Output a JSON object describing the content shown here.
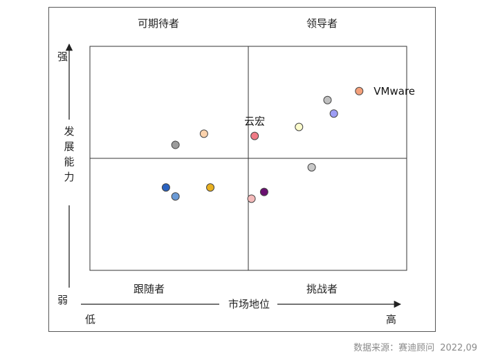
{
  "chart_data": {
    "type": "scatter",
    "title": "",
    "xlabel": "市场地位",
    "ylabel": "发展能力",
    "x_low_label": "低",
    "x_high_label": "高",
    "y_high_label": "强",
    "y_low_label": "弱",
    "xlim": [
      0,
      100
    ],
    "ylim": [
      0,
      100
    ],
    "quadrants": {
      "top_left": "可期待者",
      "top_right": "领导者",
      "bottom_left": "跟随者",
      "bottom_right": "挑战者"
    },
    "points": [
      {
        "label": "VMware",
        "x": 85,
        "y": 80,
        "color": "#f4a07a"
      },
      {
        "label": "",
        "x": 75,
        "y": 76,
        "color": "#c0c0c0"
      },
      {
        "label": "",
        "x": 77,
        "y": 70,
        "color": "#9d9df5"
      },
      {
        "label": "",
        "x": 66,
        "y": 64,
        "color": "#fcfccc"
      },
      {
        "label": "云宏",
        "x": 52,
        "y": 60,
        "color": "#f07b86"
      },
      {
        "label": "",
        "x": 36,
        "y": 61,
        "color": "#fbd2ac"
      },
      {
        "label": "",
        "x": 27,
        "y": 56,
        "color": "#9b9b9b"
      },
      {
        "label": "",
        "x": 70,
        "y": 46,
        "color": "#c8c8c8"
      },
      {
        "label": "",
        "x": 24,
        "y": 37,
        "color": "#2a62c0"
      },
      {
        "label": "",
        "x": 27,
        "y": 33,
        "color": "#6a9ad6"
      },
      {
        "label": "",
        "x": 38,
        "y": 37,
        "color": "#e8b020"
      },
      {
        "label": "",
        "x": 55,
        "y": 35,
        "color": "#6a1070"
      },
      {
        "label": "",
        "x": 51,
        "y": 32,
        "color": "#f4baba"
      }
    ]
  },
  "source": {
    "label": "数据来源：赛迪顾问",
    "date": "2022,09"
  }
}
